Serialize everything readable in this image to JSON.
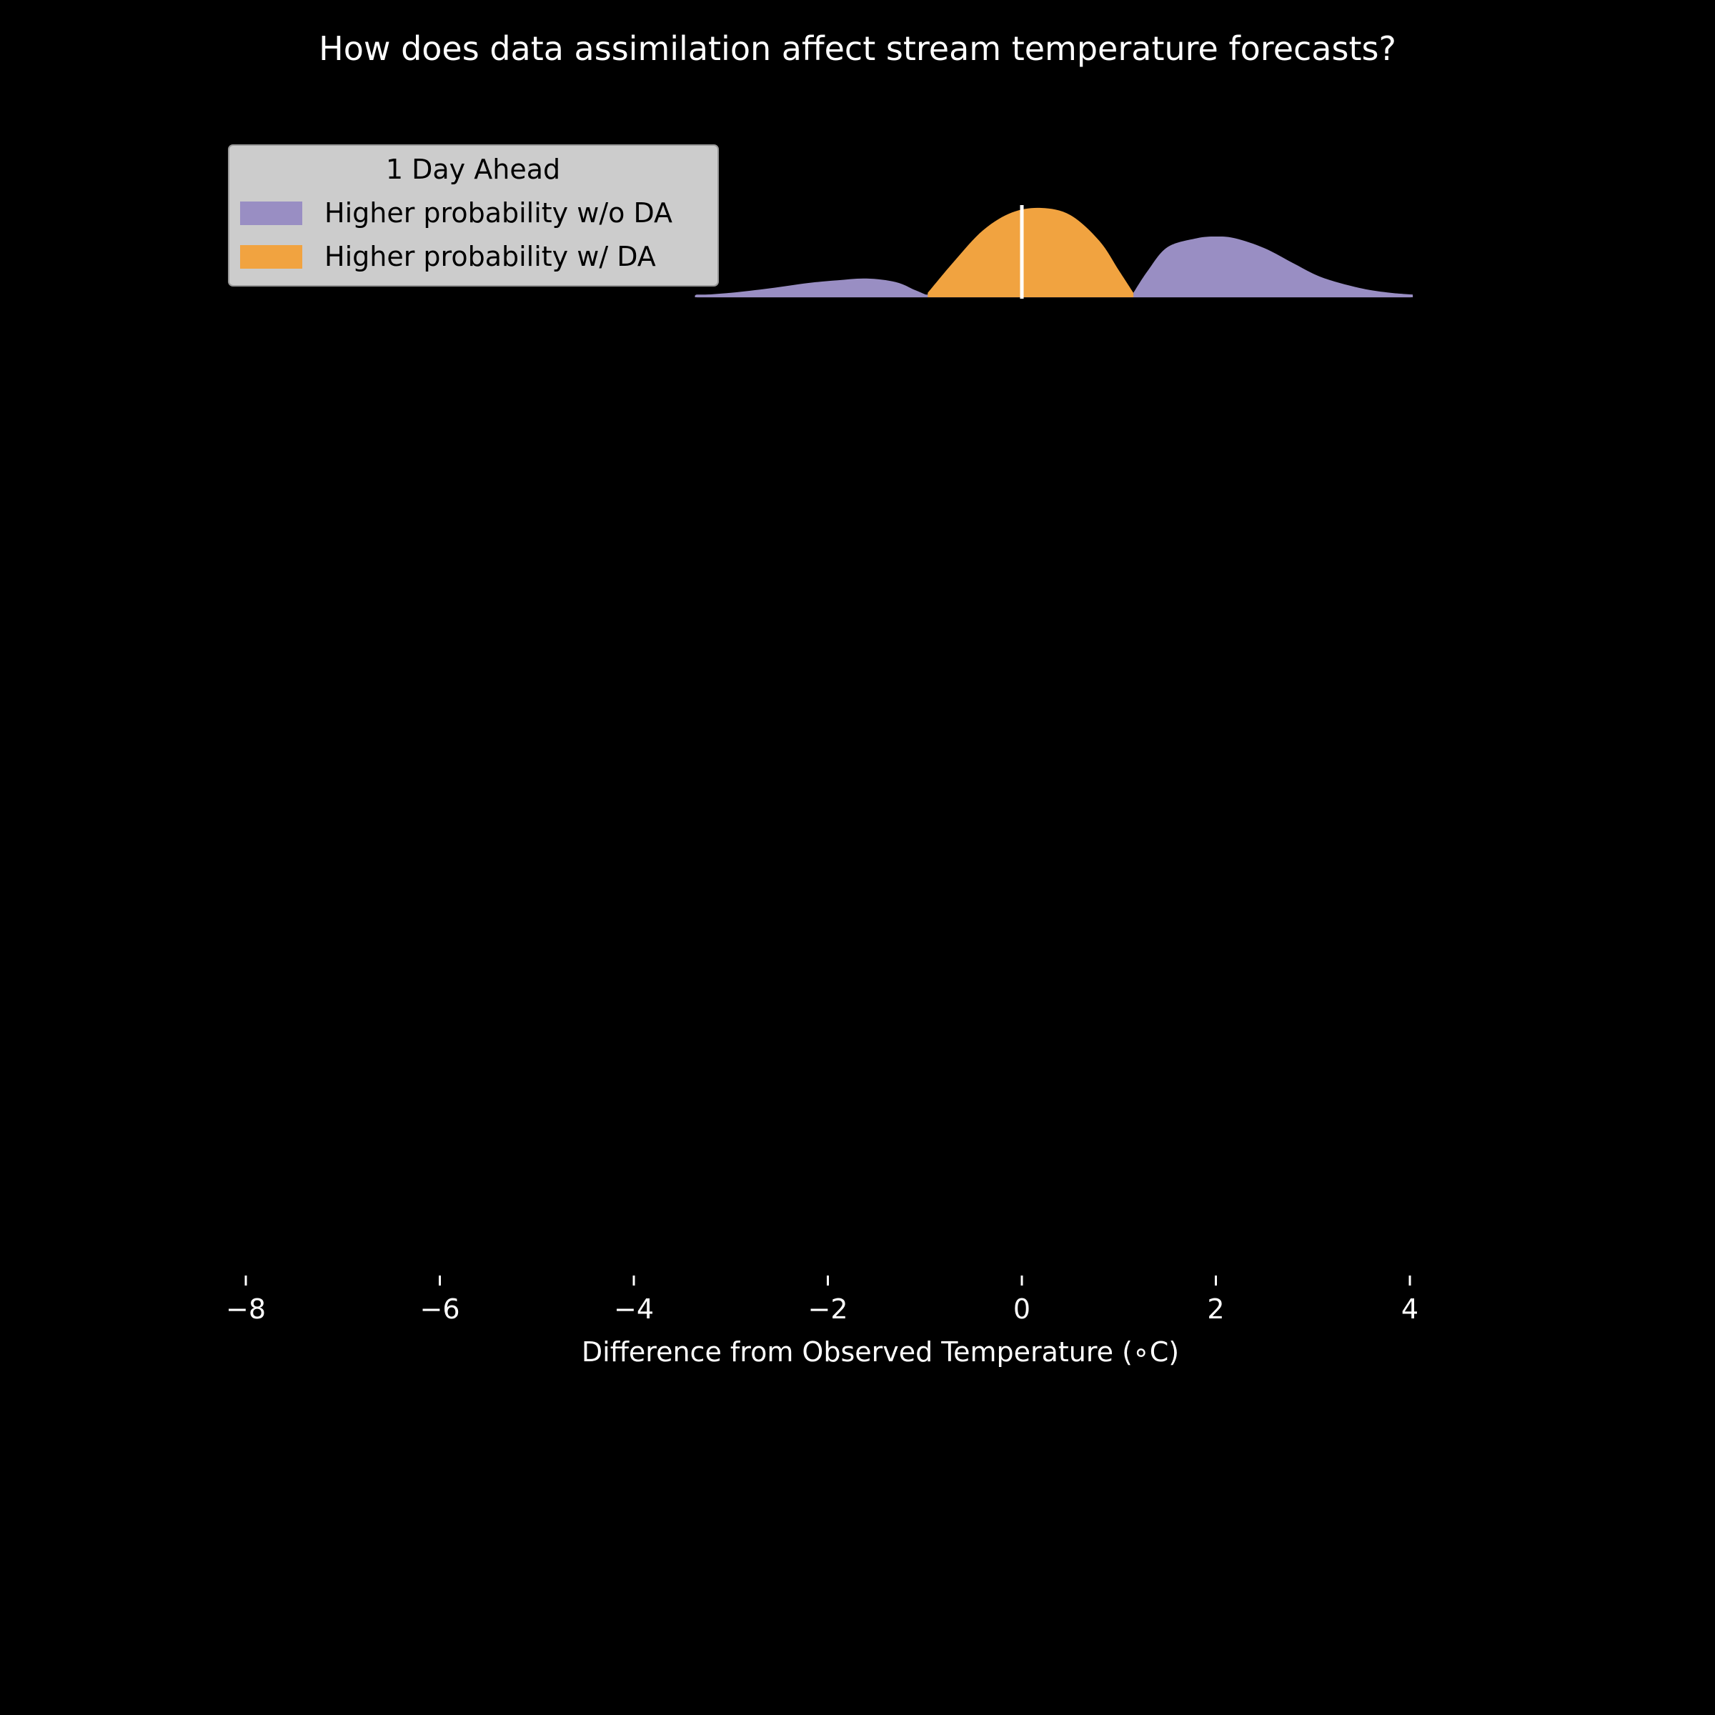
{
  "chart_data": {
    "type": "area",
    "title": "How does data assimilation affect stream temperature forecasts?",
    "xlabel": "Difference from Observed Temperature (∘C)",
    "ylabel": "",
    "xlim": [
      -8,
      4
    ],
    "ylim": [
      0,
      1
    ],
    "x_ticks": [
      -8,
      -6,
      -4,
      -2,
      0,
      2,
      4
    ],
    "x_tick_labels": [
      "−8",
      "−6",
      "−4",
      "−2",
      "0",
      "2",
      "4"
    ],
    "grid": false,
    "legend": {
      "title": "1 Day Ahead",
      "placement": "top-left",
      "entries": [
        "Higher probability w/o DA",
        "Higher probability w/ DA"
      ]
    },
    "reference_line_x": 0,
    "series": [
      {
        "name": "Higher probability w/o DA",
        "color": "#998ec3",
        "segments": [
          {
            "x": [
              -3.37,
              -3.0,
              -2.6,
              -2.2,
              -1.9,
              -1.6,
              -1.3,
              -1.1,
              -0.97
            ],
            "y": [
              0.02,
              0.05,
              0.1,
              0.16,
              0.19,
              0.21,
              0.17,
              0.08,
              0.02
            ]
          },
          {
            "x": [
              1.15,
              1.3,
              1.5,
              1.8,
              2.0,
              2.2,
              2.5,
              2.8,
              3.1,
              3.5,
              3.8,
              4.03
            ],
            "y": [
              0.05,
              0.3,
              0.56,
              0.66,
              0.68,
              0.66,
              0.55,
              0.38,
              0.22,
              0.1,
              0.05,
              0.03
            ]
          }
        ],
        "baseline": {
          "x_start": -3.37,
          "x_end": 4.03,
          "y": 0.03
        }
      },
      {
        "name": "Higher probability w/ DA",
        "color": "#f1a340",
        "segments": [
          {
            "x": [
              -0.97,
              -0.7,
              -0.4,
              -0.1,
              0.2,
              0.5,
              0.8,
              1.0,
              1.15
            ],
            "y": [
              0.05,
              0.4,
              0.75,
              0.95,
              1.0,
              0.92,
              0.63,
              0.3,
              0.05
            ]
          }
        ]
      }
    ],
    "colors": {
      "background": "#000000",
      "text": "#ffffff",
      "legend_bg": "#cccccc",
      "reference_line": "#ffffff"
    }
  }
}
